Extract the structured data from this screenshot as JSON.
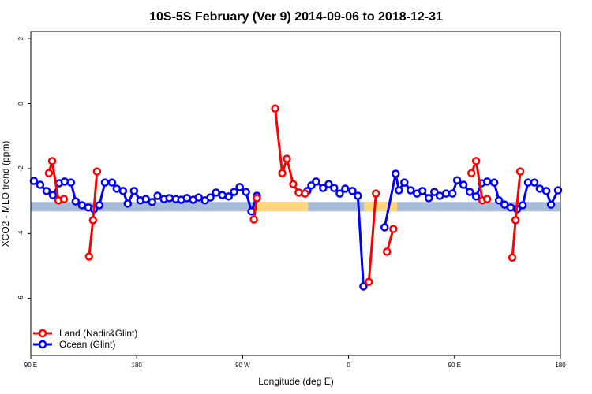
{
  "chart_data": {
    "type": "line",
    "title": "10S-5S February (Ver 9)   2014-09-06 to 2018-12-31",
    "xlabel": "Longitude (deg E)",
    "ylabel": "XCO2 - MLO trend (ppm)",
    "x_units_note": "unwrapped longitude, 90 to 450 deg E",
    "xlim": [
      90,
      450
    ],
    "ylim": [
      -7.8,
      2.2
    ],
    "xticks": [
      90,
      180,
      270,
      360,
      450,
      540
    ],
    "xtick_labels": [
      "90 E",
      "180",
      "90 W",
      "0",
      "90 E",
      "180"
    ],
    "yticks": [
      2,
      0,
      -2,
      -4,
      -6
    ],
    "ytick_labels": [
      "2",
      "0",
      "-2",
      "-4",
      "-6"
    ],
    "legend_position": "bottom-left",
    "surface_band": {
      "y_range": [
        -3.32,
        -3.03
      ],
      "ocean_color": "#a6bcd9",
      "land_color": "#fdd67a",
      "land_ranges": [
        [
          243.7,
          278.5
        ],
        [
          316.5,
          339
        ]
      ]
    },
    "series": [
      {
        "name": "Land (Nadir&Glint)",
        "color": "#ff0000",
        "points": [
          [
            102.3,
            -2.14
          ],
          [
            104.5,
            -1.77
          ],
          [
            108.8,
            -2.98
          ],
          [
            112.5,
            -2.94
          ],
          null,
          [
            129.6,
            -4.71
          ],
          [
            132.3,
            -3.59
          ],
          [
            135.0,
            -2.09
          ],
          null,
          [
            241.6,
            -3.57
          ],
          [
            243.7,
            -2.91
          ],
          null,
          [
            256.1,
            -0.15
          ],
          [
            260.9,
            -2.14
          ],
          [
            264.1,
            -1.7
          ],
          [
            268.4,
            -2.48
          ],
          [
            272.1,
            -2.74
          ],
          [
            276.4,
            -2.77
          ],
          null,
          [
            319.8,
            -5.49
          ],
          [
            324.6,
            -2.77
          ],
          null,
          [
            332.1,
            -4.56
          ],
          [
            336.4,
            -3.86
          ],
          null,
          [
            389.5,
            -2.14
          ],
          [
            392.7,
            -1.77
          ],
          [
            397.0,
            -2.98
          ],
          [
            400.2,
            -2.94
          ],
          null,
          [
            417.3,
            -4.74
          ],
          [
            419.5,
            -3.59
          ],
          [
            422.7,
            -2.09
          ]
        ]
      },
      {
        "name": "Ocean (Glint)",
        "color": "#0000ff",
        "points": [
          [
            92.1,
            -2.38
          ],
          [
            96.4,
            -2.5
          ],
          [
            100.7,
            -2.69
          ],
          [
            105.0,
            -2.82
          ],
          [
            109.3,
            -2.45
          ],
          [
            113.0,
            -2.4
          ],
          [
            117.3,
            -2.43
          ],
          [
            120.5,
            -3.01
          ],
          [
            124.8,
            -3.13
          ],
          [
            129.1,
            -3.2
          ],
          [
            132.9,
            -3.25
          ],
          [
            136.6,
            -3.13
          ],
          [
            140.4,
            -2.43
          ],
          [
            145.2,
            -2.43
          ],
          [
            148.4,
            -2.62
          ],
          [
            152.7,
            -2.69
          ],
          [
            155.9,
            -3.08
          ],
          [
            160.2,
            -2.69
          ],
          [
            164.5,
            -2.98
          ],
          [
            168.2,
            -2.94
          ],
          [
            172.5,
            -3.03
          ],
          [
            176.2,
            -2.84
          ],
          [
            180.5,
            -2.94
          ],
          [
            184.3,
            -2.91
          ],
          [
            188.6,
            -2.94
          ],
          [
            192.3,
            -2.96
          ],
          [
            196.1,
            -2.91
          ],
          [
            200.4,
            -2.96
          ],
          [
            204.1,
            -2.89
          ],
          [
            208.4,
            -2.98
          ],
          [
            212.1,
            -2.89
          ],
          [
            215.9,
            -2.74
          ],
          [
            220.2,
            -2.82
          ],
          [
            224.5,
            -2.86
          ],
          [
            228.2,
            -2.72
          ],
          [
            232.0,
            -2.57
          ],
          [
            236.3,
            -2.72
          ],
          [
            240.0,
            -3.32
          ],
          [
            243.7,
            -2.84
          ],
          null,
          [
            278.0,
            -2.69
          ],
          [
            280.7,
            -2.52
          ],
          [
            283.9,
            -2.4
          ],
          [
            288.7,
            -2.6
          ],
          [
            292.5,
            -2.48
          ],
          [
            296.2,
            -2.6
          ],
          [
            300.0,
            -2.77
          ],
          [
            303.7,
            -2.62
          ],
          [
            308.6,
            -2.69
          ],
          [
            312.3,
            -2.84
          ],
          [
            316.1,
            -5.63
          ],
          null,
          [
            330.5,
            -3.81
          ],
          [
            338.0,
            -2.16
          ],
          [
            340.2,
            -2.67
          ],
          [
            343.9,
            -2.43
          ],
          [
            348.2,
            -2.67
          ],
          [
            352.5,
            -2.77
          ],
          [
            356.2,
            -2.69
          ],
          [
            360.5,
            -2.91
          ],
          [
            364.3,
            -2.72
          ],
          [
            368.0,
            -2.84
          ],
          [
            372.3,
            -2.77
          ],
          [
            376.6,
            -2.77
          ],
          [
            379.8,
            -2.36
          ],
          [
            384.1,
            -2.5
          ],
          [
            388.4,
            -2.72
          ],
          [
            392.7,
            -2.86
          ],
          [
            396.4,
            -2.45
          ],
          [
            400.2,
            -2.4
          ],
          [
            405.0,
            -2.43
          ],
          [
            408.2,
            -2.98
          ],
          [
            412.0,
            -3.11
          ],
          [
            416.2,
            -3.2
          ],
          [
            420.5,
            -3.25
          ],
          [
            424.3,
            -3.13
          ],
          [
            428.0,
            -2.43
          ],
          [
            432.3,
            -2.43
          ],
          [
            436.0,
            -2.62
          ],
          [
            440.4,
            -2.69
          ],
          [
            443.6,
            -3.11
          ],
          [
            448.4,
            -2.67
          ]
        ]
      }
    ]
  }
}
